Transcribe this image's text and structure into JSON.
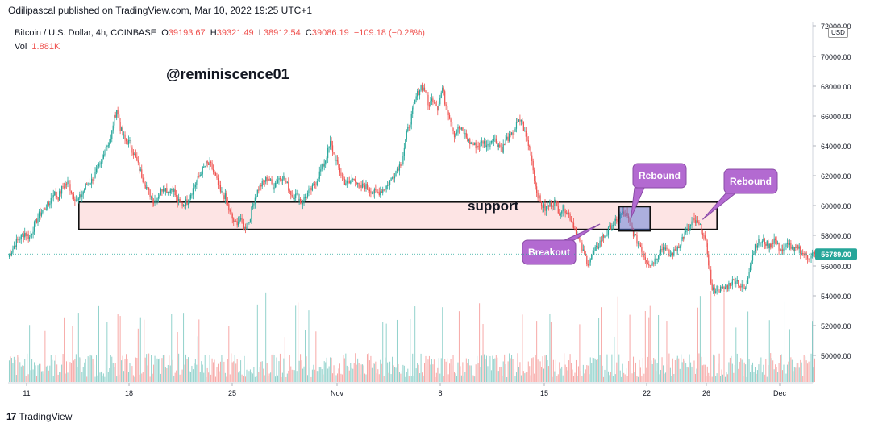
{
  "header": {
    "publisher": "Odilipascal published on TradingView.com, Mar 10, 2022 19:25 UTC+1",
    "symbol": "Bitcoin / U.S. Dollar, 4h, COINBASE",
    "ohlc": {
      "o_label": "O",
      "o_value": "39193.67",
      "h_label": "H",
      "h_value": "39321.49",
      "l_label": "L",
      "l_value": "38912.54",
      "c_label": "C",
      "c_value": "39086.19",
      "change": "−109.18 (−0.28%)"
    },
    "vol_label": "Vol",
    "vol_value": "1.881K"
  },
  "footer": {
    "brand": "TradingView"
  },
  "colors": {
    "up": "#26a69a",
    "down": "#ef5350",
    "zone_fill": "#fde4e4",
    "callout": "#b36ad1"
  },
  "chart_data": {
    "type": "candlestick",
    "symbol": "Bitcoin / U.S. Dollar",
    "interval": "4h",
    "exchange": "COINBASE",
    "currency": "USD",
    "ylim": [
      48000,
      72000
    ],
    "y_ticks": [
      50000,
      52000,
      54000,
      56000,
      58000,
      60000,
      62000,
      64000,
      66000,
      68000,
      70000,
      72000
    ],
    "y_tick_labels": [
      "50000.00",
      "52000.00",
      "54000.00",
      "56000.00",
      "58000.00",
      "60000.00",
      "62000.00",
      "64000.00",
      "66000.00",
      "68000.00",
      "70000.00",
      "72000.00"
    ],
    "x_tick_labels": [
      "11",
      "18",
      "25",
      "Nov",
      "8",
      "15",
      "22",
      "26",
      "Dec"
    ],
    "last_price": "56789.00",
    "last_price_value": 56789,
    "price_path": [
      [
        0,
        56600
      ],
      [
        3,
        57000
      ],
      [
        6,
        57500
      ],
      [
        10,
        57900
      ],
      [
        14,
        58200
      ],
      [
        18,
        57900
      ],
      [
        22,
        58700
      ],
      [
        26,
        59400
      ],
      [
        30,
        59800
      ],
      [
        34,
        60100
      ],
      [
        38,
        60900
      ],
      [
        42,
        60600
      ],
      [
        46,
        61300
      ],
      [
        50,
        61600
      ],
      [
        54,
        60800
      ],
      [
        58,
        60300
      ],
      [
        62,
        60800
      ],
      [
        66,
        61500
      ],
      [
        70,
        61700
      ],
      [
        74,
        62300
      ],
      [
        78,
        62800
      ],
      [
        82,
        64000
      ],
      [
        86,
        64400
      ],
      [
        88,
        65500
      ],
      [
        91,
        66500
      ],
      [
        94,
        65200
      ],
      [
        98,
        64400
      ],
      [
        102,
        64200
      ],
      [
        106,
        63400
      ],
      [
        110,
        62500
      ],
      [
        114,
        61600
      ],
      [
        118,
        60900
      ],
      [
        122,
        60300
      ],
      [
        126,
        60700
      ],
      [
        130,
        61300
      ],
      [
        134,
        61000
      ],
      [
        138,
        61200
      ],
      [
        142,
        60300
      ],
      [
        146,
        60100
      ],
      [
        150,
        60300
      ],
      [
        154,
        61000
      ],
      [
        158,
        61600
      ],
      [
        162,
        62300
      ],
      [
        166,
        62800
      ],
      [
        170,
        62700
      ],
      [
        174,
        61900
      ],
      [
        178,
        60900
      ],
      [
        182,
        60600
      ],
      [
        186,
        59500
      ],
      [
        190,
        58800
      ],
      [
        194,
        59100
      ],
      [
        198,
        58500
      ],
      [
        202,
        59000
      ],
      [
        206,
        60400
      ],
      [
        210,
        61200
      ],
      [
        214,
        61600
      ],
      [
        218,
        61900
      ],
      [
        222,
        61300
      ],
      [
        226,
        61800
      ],
      [
        230,
        62000
      ],
      [
        234,
        61400
      ],
      [
        238,
        60700
      ],
      [
        242,
        60700
      ],
      [
        246,
        60200
      ],
      [
        250,
        60700
      ],
      [
        254,
        61100
      ],
      [
        258,
        61600
      ],
      [
        262,
        62400
      ],
      [
        266,
        63100
      ],
      [
        270,
        64200
      ],
      [
        274,
        63200
      ],
      [
        278,
        62300
      ],
      [
        282,
        61600
      ],
      [
        286,
        61500
      ],
      [
        290,
        62000
      ],
      [
        294,
        61100
      ],
      [
        298,
        61400
      ],
      [
        302,
        61200
      ],
      [
        306,
        60900
      ],
      [
        310,
        60900
      ],
      [
        314,
        61100
      ],
      [
        318,
        61400
      ],
      [
        322,
        61900
      ],
      [
        326,
        62500
      ],
      [
        330,
        63000
      ],
      [
        334,
        64800
      ],
      [
        338,
        66000
      ],
      [
        342,
        67300
      ],
      [
        346,
        68000
      ],
      [
        350,
        67700
      ],
      [
        352,
        66700
      ],
      [
        356,
        67200
      ],
      [
        360,
        66600
      ],
      [
        364,
        67900
      ],
      [
        366,
        67000
      ],
      [
        370,
        66000
      ],
      [
        374,
        64800
      ],
      [
        378,
        65200
      ],
      [
        382,
        64900
      ],
      [
        386,
        64300
      ],
      [
        390,
        64100
      ],
      [
        394,
        64000
      ],
      [
        398,
        64300
      ],
      [
        402,
        64000
      ],
      [
        406,
        64600
      ],
      [
        410,
        64200
      ],
      [
        414,
        63800
      ],
      [
        418,
        64500
      ],
      [
        422,
        64700
      ],
      [
        426,
        65400
      ],
      [
        430,
        65800
      ],
      [
        434,
        64600
      ],
      [
        438,
        63600
      ],
      [
        442,
        61300
      ],
      [
        446,
        60200
      ],
      [
        450,
        59800
      ],
      [
        454,
        60100
      ],
      [
        458,
        60300
      ],
      [
        462,
        59600
      ],
      [
        466,
        59900
      ],
      [
        470,
        59400
      ],
      [
        474,
        58700
      ],
      [
        478,
        57800
      ],
      [
        482,
        56900
      ],
      [
        486,
        56200
      ],
      [
        490,
        56700
      ],
      [
        494,
        57300
      ],
      [
        498,
        57900
      ],
      [
        502,
        58200
      ],
      [
        506,
        58800
      ],
      [
        510,
        58900
      ],
      [
        514,
        59500
      ],
      [
        518,
        59400
      ],
      [
        522,
        58600
      ],
      [
        526,
        57800
      ],
      [
        530,
        57300
      ],
      [
        534,
        56500
      ],
      [
        538,
        56100
      ],
      [
        542,
        56400
      ],
      [
        546,
        57000
      ],
      [
        550,
        57300
      ],
      [
        554,
        56700
      ],
      [
        558,
        56900
      ],
      [
        562,
        57400
      ],
      [
        566,
        58000
      ],
      [
        570,
        58400
      ],
      [
        574,
        59000
      ],
      [
        578,
        58800
      ],
      [
        582,
        58300
      ],
      [
        586,
        56900
      ],
      [
        590,
        54300
      ],
      [
        594,
        54500
      ],
      [
        598,
        54400
      ],
      [
        602,
        54600
      ],
      [
        606,
        54900
      ],
      [
        610,
        55100
      ],
      [
        614,
        54600
      ],
      [
        618,
        54400
      ],
      [
        622,
        56200
      ],
      [
        626,
        57400
      ],
      [
        630,
        57600
      ],
      [
        634,
        57600
      ],
      [
        638,
        57300
      ],
      [
        642,
        57800
      ],
      [
        646,
        57200
      ],
      [
        650,
        57000
      ],
      [
        654,
        57600
      ],
      [
        658,
        56900
      ],
      [
        662,
        57300
      ],
      [
        666,
        56800
      ],
      [
        670,
        56600
      ],
      [
        674,
        56800
      ],
      [
        676,
        56789
      ]
    ],
    "volume_note": "volume histogram per candle, colored by candle direction",
    "annotations": [
      {
        "type": "text",
        "text": "@reminiscence01"
      },
      {
        "type": "zone",
        "text": "support",
        "y_range": [
          58600,
          60100
        ],
        "x_range": [
          60,
          590
        ]
      },
      {
        "type": "box",
        "y_range": [
          58600,
          59900
        ],
        "x_range": [
          512,
          538
        ]
      },
      {
        "type": "callout",
        "text": "Rebound",
        "target": [
          522,
          59200
        ]
      },
      {
        "type": "callout",
        "text": "Rebound",
        "target": [
          582,
          59100
        ]
      },
      {
        "type": "callout",
        "text": "Breakout",
        "target": [
          496,
          58800
        ]
      }
    ]
  }
}
